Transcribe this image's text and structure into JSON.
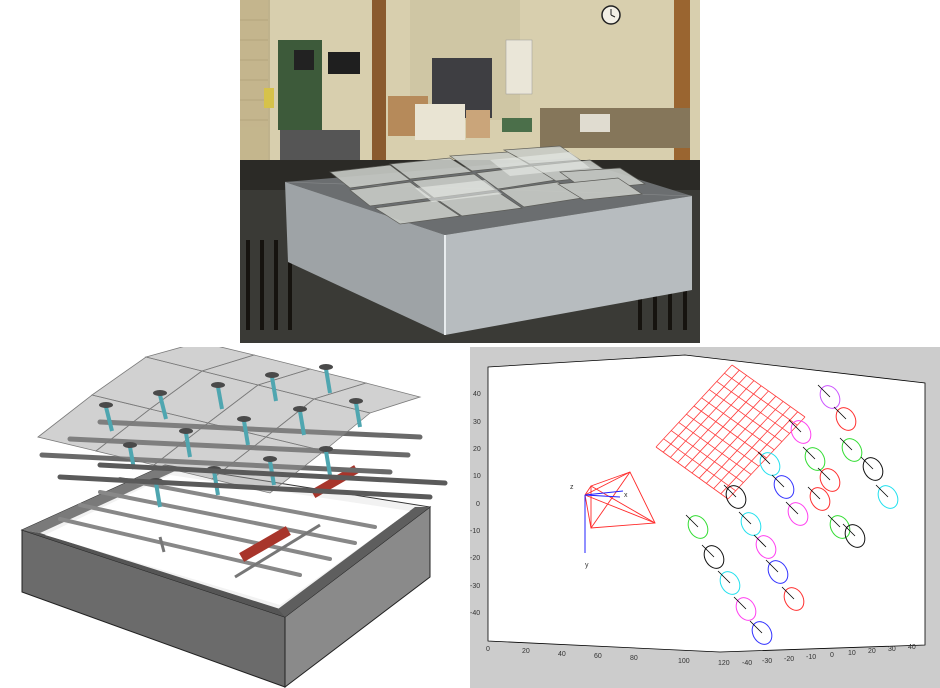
{
  "panels": {
    "photo": {
      "label": "photo of physical mirror array prototype"
    },
    "cad": {
      "label": "CAD rendering of mirror array mechanism"
    },
    "plot": {
      "label": "3D simulation plot"
    }
  },
  "plot": {
    "y_ticks": [
      "40",
      "30",
      "20",
      "10",
      "0",
      "-10",
      "-20",
      "-30",
      "-40"
    ],
    "x_ticks": [
      "0",
      "20",
      "40",
      "60",
      "80",
      "100",
      "120"
    ],
    "z_ticks": [
      "-40",
      "-30",
      "-20",
      "-10",
      "0",
      "10",
      "20",
      "30",
      "40"
    ],
    "axis_labels": {
      "zc": "z",
      "xc": "x",
      "yc": "y"
    }
  },
  "colors": {
    "grid_red": "#ff3b3b",
    "ring_colors": [
      "#ff3ff0",
      "#33dd33",
      "#ff3030",
      "#3333ff",
      "#22e0ee",
      "#111111",
      "#cc55ff"
    ]
  }
}
